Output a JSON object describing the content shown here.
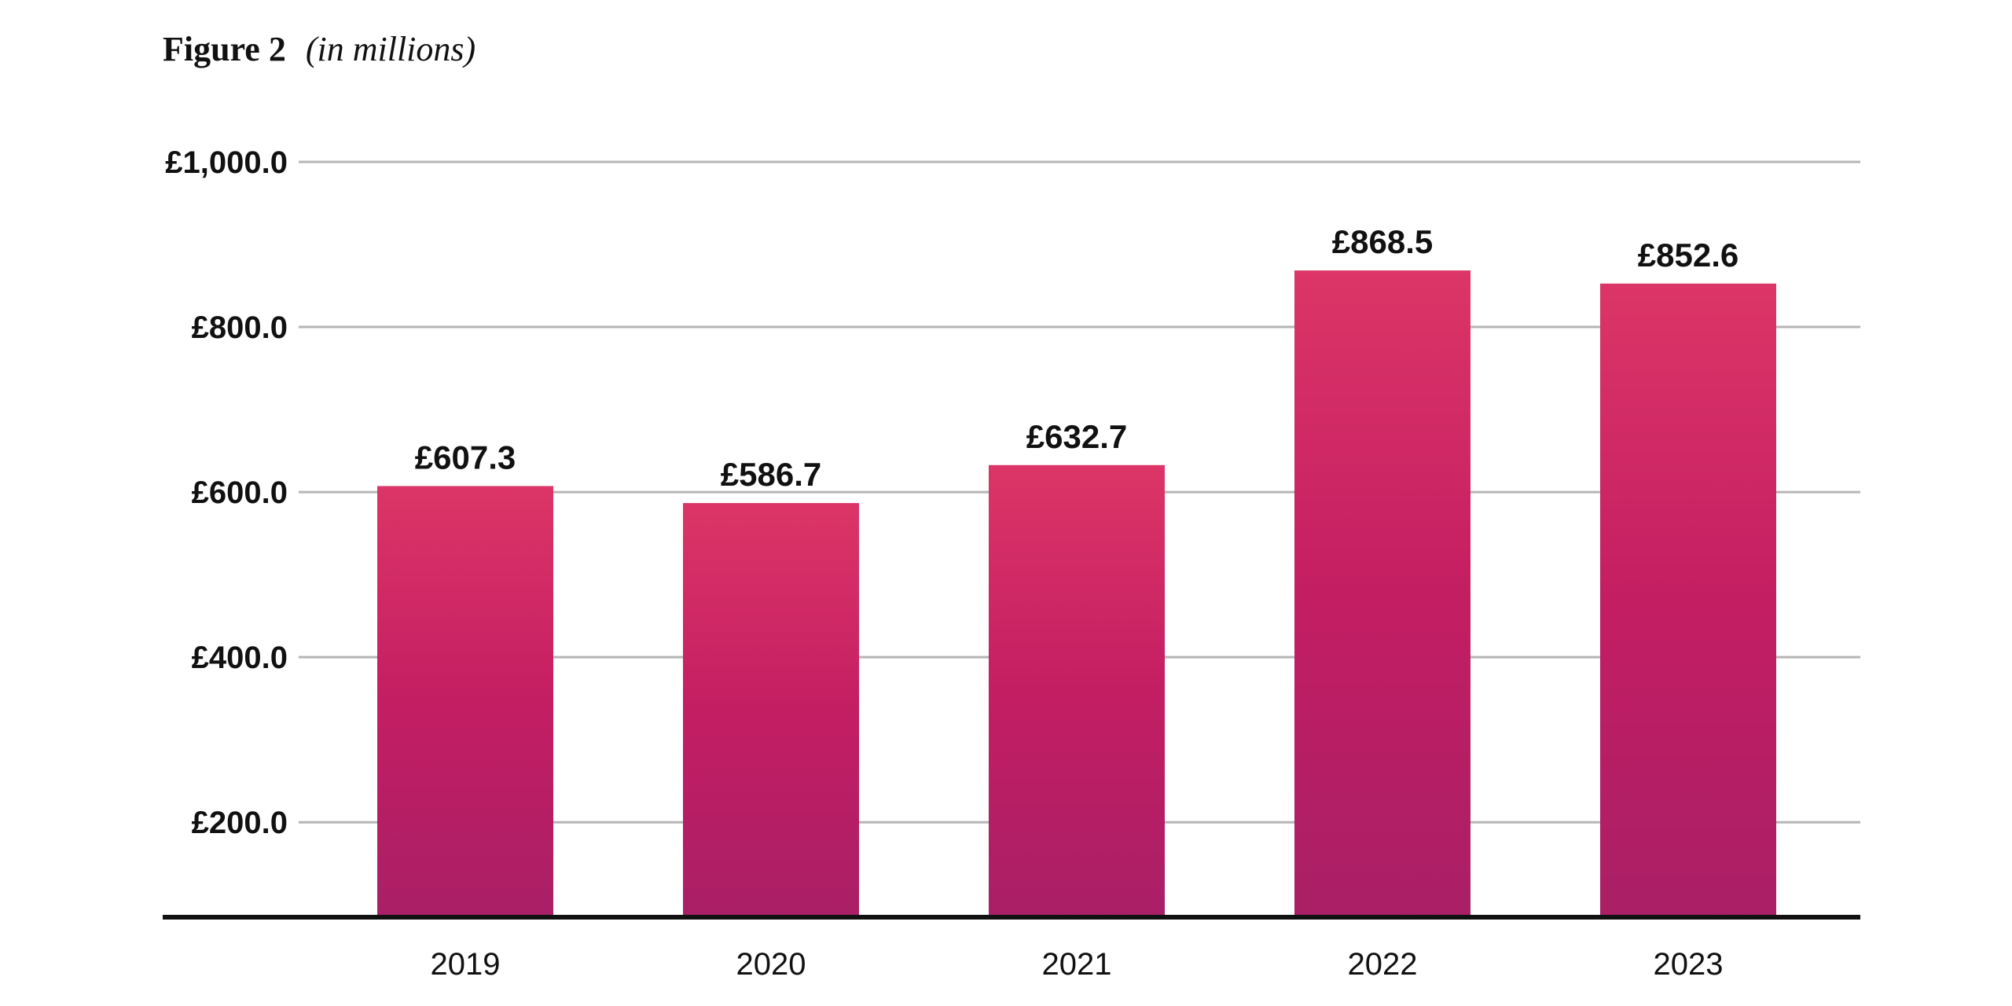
{
  "figure": {
    "label": "Figure 2",
    "subtitle": "(in millions)"
  },
  "colors": {
    "bar_top": "#dc3567",
    "bar_mid": "#c41e63",
    "bar_bottom": "#a91f66",
    "gridline": "#b5b5b5",
    "axis": "#111111",
    "text": "#111111"
  },
  "chart_data": {
    "type": "bar",
    "title": "Figure 2",
    "subtitle": "(in millions)",
    "categories": [
      "2019",
      "2020",
      "2021",
      "2022",
      "2023"
    ],
    "values": [
      607.3,
      586.7,
      632.7,
      868.5,
      852.6
    ],
    "data_labels": [
      "£607.3",
      "£586.7",
      "£632.7",
      "£868.5",
      "£852.6"
    ],
    "y_ticks": [
      200,
      400,
      600,
      800,
      1000
    ],
    "y_tick_labels": [
      "£200.0",
      "£400.0",
      "£600.0",
      "£800.0",
      "£1,000.0"
    ],
    "ylim": [
      85,
      1000
    ],
    "grid": true,
    "legend": "none"
  }
}
